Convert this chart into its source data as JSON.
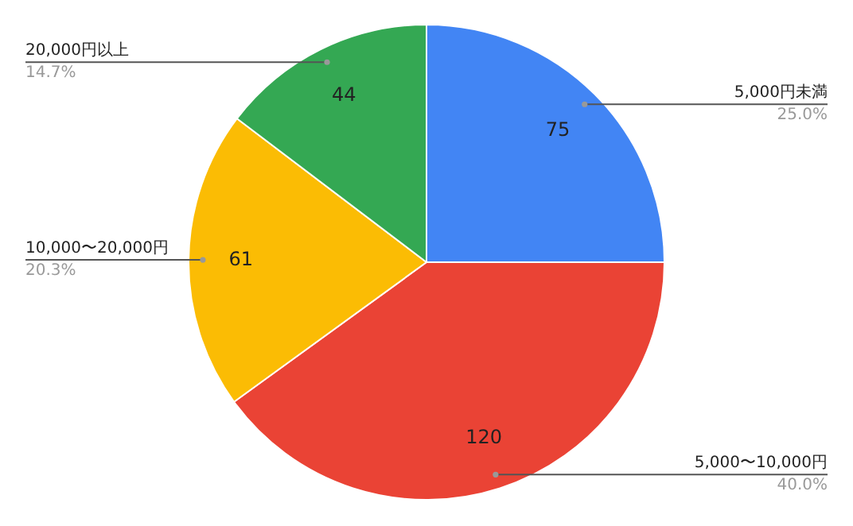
{
  "chart_data": {
    "type": "pie",
    "categories": [
      "5,000円未満",
      "5,000〜10,000円",
      "10,000〜20,000円",
      "20,000円以上"
    ],
    "values": [
      75,
      120,
      61,
      44
    ],
    "colors": [
      "#4285f4",
      "#ea4335",
      "#fbbc04",
      "#34a853"
    ],
    "value_labels": [
      "75",
      "120",
      "61",
      "44"
    ],
    "annotations": [
      "25.0%",
      "40.0%",
      "20.3%",
      "14.7%"
    ],
    "legend": false
  }
}
